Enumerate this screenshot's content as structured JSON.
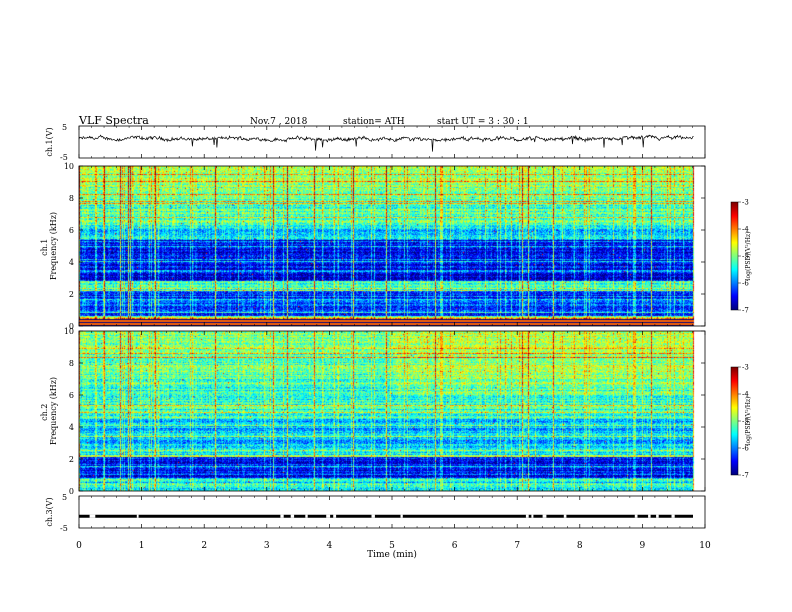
{
  "header": {
    "title": "VLF  Spectra",
    "date": "Nov.7  , 2018",
    "station": "station= ATH",
    "start": "start  UT  =    3  : 30 : 1"
  },
  "chart_data": [
    {
      "type": "line",
      "panel": "ch1-waveform",
      "ylabel": "ch.1(V)",
      "ylim": [
        -5,
        5
      ],
      "yticks": [
        -5,
        5
      ],
      "xlim": [
        0,
        10
      ],
      "baseline_v": 1.0
    },
    {
      "type": "heatmap",
      "panel": "ch1-spectrogram",
      "ylabel": "ch.1\nFrequency  (kHz)",
      "ylim": [
        0,
        10
      ],
      "yticks": [
        0,
        2,
        4,
        6,
        8,
        10
      ],
      "xlim": [
        0,
        10
      ],
      "colorbar": {
        "label": "log(PSD)(V²/Hz)",
        "range": [
          -7,
          -3
        ],
        "ticks": [
          -7,
          -6,
          -5,
          -4,
          -3
        ]
      }
    },
    {
      "type": "heatmap",
      "panel": "ch2-spectrogram",
      "ylabel": "ch.2\nFrequency  (kHz)",
      "ylim": [
        0,
        10
      ],
      "yticks": [
        0,
        2,
        4,
        6,
        8,
        10
      ],
      "xlim": [
        0,
        10
      ],
      "colorbar": {
        "label": "log(PSD)(V²/Hz)",
        "range": [
          -7,
          -3
        ],
        "ticks": [
          -7,
          -6,
          -5,
          -4,
          -3
        ]
      }
    },
    {
      "type": "line",
      "panel": "ch3-waveform",
      "ylabel": "ch.3(V)",
      "ylim": [
        -5,
        5
      ],
      "yticks": [
        -5,
        5
      ],
      "xlim": [
        0,
        10
      ],
      "baseline_v": -1.3
    }
  ],
  "xaxis": {
    "label": "Time  (min)",
    "range": [
      0,
      10
    ],
    "ticks": [
      0,
      1,
      2,
      3,
      4,
      5,
      6,
      7,
      8,
      9,
      10
    ]
  }
}
